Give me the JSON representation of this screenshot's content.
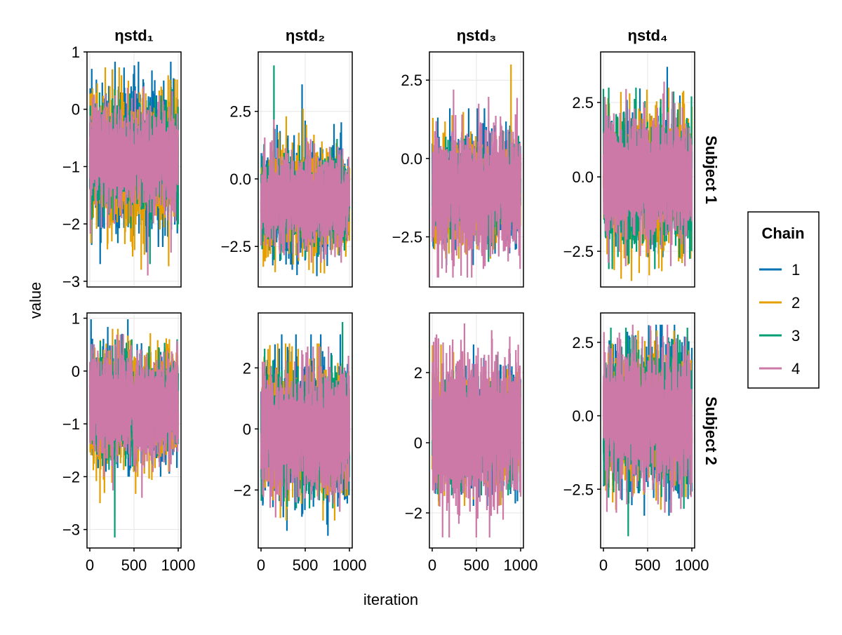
{
  "chart_data": {
    "type": "line",
    "figure": "MCMC trace plots",
    "xlabel": "iteration",
    "ylabel": "value",
    "x_range": [
      1,
      1000
    ],
    "xticks": [
      0,
      500,
      1000
    ],
    "xtick_labels": [
      "0",
      "500",
      "1000"
    ],
    "columns": [
      "ηstd₁",
      "ηstd₂",
      "ηstd₃",
      "ηstd₄"
    ],
    "rows": [
      "Subject 1",
      "Subject 2"
    ],
    "legend": {
      "title": "Chain",
      "placement": "right",
      "entries": [
        {
          "label": "1",
          "color": "#0072b2"
        },
        {
          "label": "2",
          "color": "#e69f00"
        },
        {
          "label": "3",
          "color": "#009e73"
        },
        {
          "label": "4",
          "color": "#cc79a7"
        }
      ]
    },
    "panels": [
      {
        "row": "Subject 1",
        "column": "ηstd₁",
        "ylim": [
          -3.1,
          1.0
        ],
        "yticks": [
          -3,
          -2,
          -1,
          0,
          1
        ],
        "ytick_labels": [
          "−3",
          "−2",
          "−1",
          "0",
          "1"
        ],
        "series_summary": [
          {
            "chain": "1",
            "mean": -0.85,
            "min": -2.7,
            "max": 0.83
          },
          {
            "chain": "2",
            "mean": -0.85,
            "min": -2.8,
            "max": 0.73
          },
          {
            "chain": "3",
            "mean": -0.85,
            "min": -2.7,
            "max": 0.35
          },
          {
            "chain": "4",
            "mean": -0.85,
            "min": -2.9,
            "max": 0.4
          }
        ]
      },
      {
        "row": "Subject 1",
        "column": "ηstd₂",
        "ylim": [
          -4.0,
          4.7
        ],
        "yticks": [
          -2.5,
          0.0,
          2.5
        ],
        "ytick_labels": [
          "−2.5",
          "0.0",
          "2.5"
        ],
        "series_summary": [
          {
            "chain": "1",
            "mean": -0.8,
            "min": -3.6,
            "max": 3.5
          },
          {
            "chain": "2",
            "mean": -0.8,
            "min": -3.5,
            "max": 2.6
          },
          {
            "chain": "3",
            "mean": -0.8,
            "min": -3.0,
            "max": 4.2
          },
          {
            "chain": "4",
            "mean": -0.8,
            "min": -3.1,
            "max": 2.2
          }
        ]
      },
      {
        "row": "Subject 1",
        "column": "ηstd₃",
        "ylim": [
          -4.1,
          3.4
        ],
        "yticks": [
          -2.5,
          0.0,
          2.5
        ],
        "ytick_labels": [
          "−2.5",
          "0.0",
          "2.5"
        ],
        "series_summary": [
          {
            "chain": "1",
            "mean": -1.0,
            "min": -3.4,
            "max": 1.6
          },
          {
            "chain": "2",
            "mean": -1.0,
            "min": -3.2,
            "max": 3.0
          },
          {
            "chain": "3",
            "mean": -1.0,
            "min": -3.3,
            "max": 0.9
          },
          {
            "chain": "4",
            "mean": -1.0,
            "min": -3.8,
            "max": 2.2
          }
        ]
      },
      {
        "row": "Subject 1",
        "column": "ηstd₄",
        "ylim": [
          -3.7,
          4.2
        ],
        "yticks": [
          -2.5,
          0.0,
          2.5
        ],
        "ytick_labels": [
          "−2.5",
          "0.0",
          "2.5"
        ],
        "series_summary": [
          {
            "chain": "1",
            "mean": -0.1,
            "min": -2.7,
            "max": 3.7
          },
          {
            "chain": "2",
            "mean": -0.1,
            "min": -3.5,
            "max": 3.0
          },
          {
            "chain": "3",
            "mean": -0.1,
            "min": -3.1,
            "max": 3.0
          },
          {
            "chain": "4",
            "mean": -0.1,
            "min": -3.0,
            "max": 3.2
          }
        ]
      },
      {
        "row": "Subject 2",
        "column": "ηstd₁",
        "ylim": [
          -3.35,
          1.1
        ],
        "yticks": [
          -3,
          -2,
          -1,
          0,
          1
        ],
        "ytick_labels": [
          "−3",
          "−2",
          "−1",
          "0",
          "1"
        ],
        "series_summary": [
          {
            "chain": "1",
            "mean": -0.65,
            "min": -2.0,
            "max": 0.98
          },
          {
            "chain": "2",
            "mean": -0.65,
            "min": -2.5,
            "max": 0.8
          },
          {
            "chain": "3",
            "mean": -0.65,
            "min": -3.15,
            "max": 0.6
          },
          {
            "chain": "4",
            "mean": -0.65,
            "min": -2.4,
            "max": 0.7
          }
        ]
      },
      {
        "row": "Subject 2",
        "column": "ηstd₂",
        "ylim": [
          -3.9,
          3.8
        ],
        "yticks": [
          -2,
          0,
          2
        ],
        "ytick_labels": [
          "−2",
          "0",
          "2"
        ],
        "series_summary": [
          {
            "chain": "1",
            "mean": -0.1,
            "min": -3.5,
            "max": 3.1
          },
          {
            "chain": "2",
            "mean": -0.1,
            "min": -3.0,
            "max": 2.8
          },
          {
            "chain": "3",
            "mean": -0.1,
            "min": -2.6,
            "max": 3.5
          },
          {
            "chain": "4",
            "mean": -0.1,
            "min": -2.9,
            "max": 2.7
          }
        ]
      },
      {
        "row": "Subject 2",
        "column": "ηstd₃",
        "ylim": [
          -3.0,
          3.7
        ],
        "yticks": [
          -2,
          0,
          2
        ],
        "ytick_labels": [
          "−2",
          "0",
          "2"
        ],
        "series_summary": [
          {
            "chain": "1",
            "mean": 0.4,
            "min": -1.8,
            "max": 2.8
          },
          {
            "chain": "2",
            "mean": 0.4,
            "min": -1.8,
            "max": 2.8
          },
          {
            "chain": "3",
            "mean": 0.4,
            "min": -1.5,
            "max": 2.5
          },
          {
            "chain": "4",
            "mean": 0.4,
            "min": -2.7,
            "max": 3.4
          }
        ]
      },
      {
        "row": "Subject 2",
        "column": "ηstd₄",
        "ylim": [
          -4.5,
          3.5
        ],
        "yticks": [
          -2.5,
          0.0,
          2.5
        ],
        "ytick_labels": [
          "−2.5",
          "0.0",
          "2.5"
        ],
        "series_summary": [
          {
            "chain": "1",
            "mean": -0.1,
            "min": -3.4,
            "max": 3.1
          },
          {
            "chain": "2",
            "mean": -0.1,
            "min": -3.2,
            "max": 2.9
          },
          {
            "chain": "3",
            "mean": -0.1,
            "min": -4.1,
            "max": 3.0
          },
          {
            "chain": "4",
            "mean": -0.1,
            "min": -3.3,
            "max": 3.1
          }
        ]
      }
    ]
  }
}
